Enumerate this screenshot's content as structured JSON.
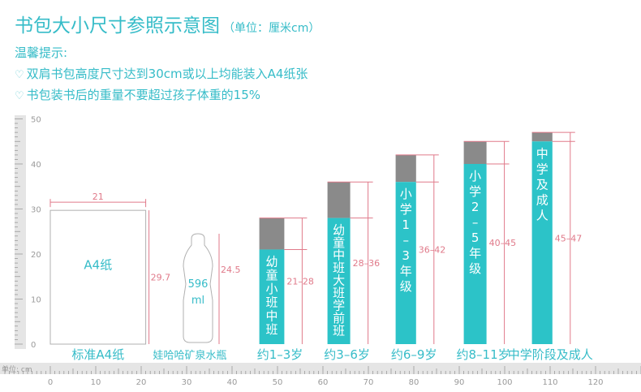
{
  "title": "书包大小尺寸参照示意图",
  "unit_note": "（单位：厘米cm）",
  "tips_heading": "温馨提示:",
  "tips": [
    "双肩书包高度尺寸达到30cm或以上均能装入A4纸张",
    "书包装书后的重量不要超过孩子体重的15%"
  ],
  "colors": {
    "accent": "#36bcc8",
    "bar_fill": "#2cc3c8",
    "bar_top": "#8a8a8a",
    "dimension_line": "#e07a8a",
    "ruler": "#e5e5e5"
  },
  "chart_data": {
    "type": "bar",
    "x_axis": {
      "label": "单位: cm",
      "range": [
        0,
        130
      ],
      "ticks": [
        0,
        10,
        20,
        30,
        40,
        50,
        60,
        70,
        80,
        90,
        100,
        110,
        120
      ]
    },
    "y_axis": {
      "range": [
        0,
        50
      ],
      "ticks": [
        0,
        10,
        20,
        30,
        40,
        50
      ]
    },
    "references": [
      {
        "name": "标准A4纸",
        "inner_label": "A4纸",
        "width": 21,
        "height": 29.7,
        "width_label": "21",
        "height_label": "29.7"
      },
      {
        "name": "娃哈哈矿泉水瓶",
        "inner_label_1": "596",
        "inner_label_2": "ml",
        "height": 24.5,
        "height_label": "24.5"
      }
    ],
    "categories": [
      "约1–3岁",
      "约3–6岁",
      "约6–9岁",
      "约8–11岁",
      "中学阶段及成人"
    ],
    "series": [
      {
        "values": [
          [
            21,
            28
          ],
          [
            28,
            36
          ],
          [
            36,
            42
          ],
          [
            40,
            45
          ],
          [
            45,
            47
          ]
        ]
      }
    ],
    "inner_labels": [
      "幼童小班中班",
      "幼童中班大班学前班",
      "小学1–3年级",
      "小学2–5年级",
      "中学及成人"
    ],
    "range_labels": [
      "21–28",
      "28–36",
      "36–42",
      "40–45",
      "45–47"
    ],
    "x_positions": [
      [
        46,
        51.5
      ],
      [
        61,
        66
      ],
      [
        76,
        80.5
      ],
      [
        91,
        96
      ],
      [
        106,
        110.5
      ]
    ]
  }
}
